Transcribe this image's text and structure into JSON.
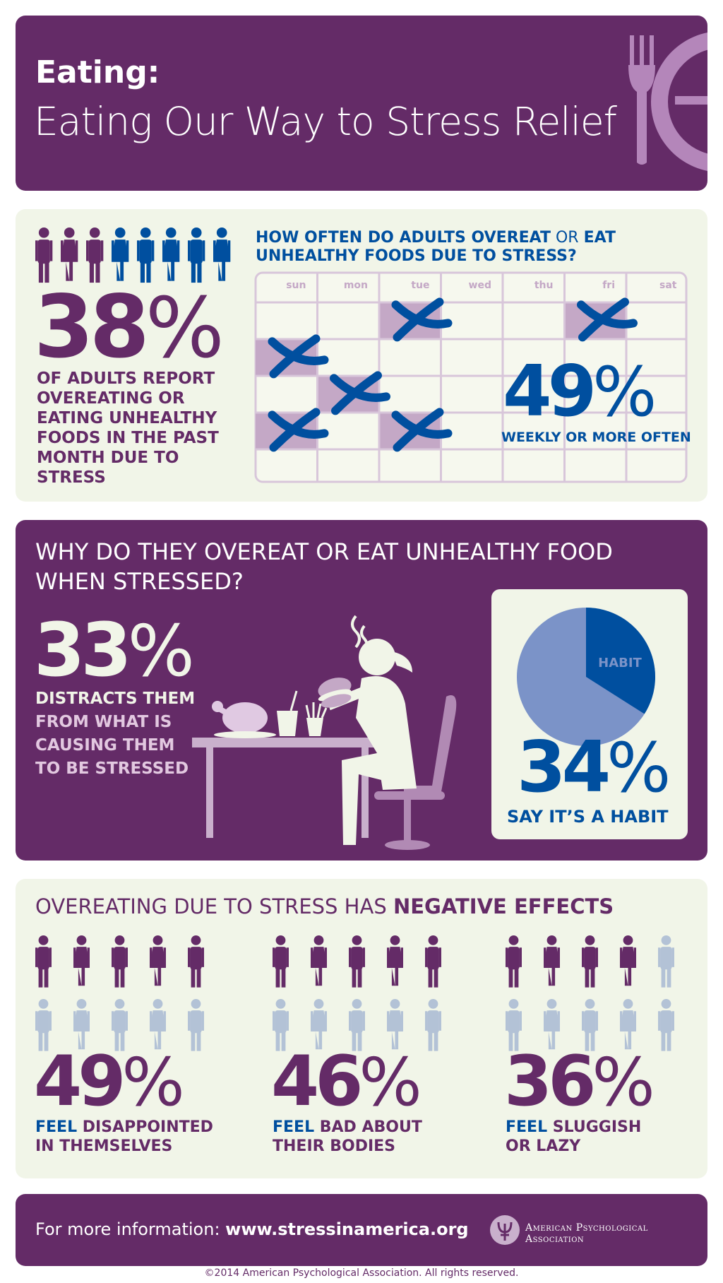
{
  "colors": {
    "purple": "#642b67",
    "light_purple": "#c4a8c6",
    "cream": "#f1f5e8",
    "blue": "#004f9f",
    "light_blue": "#7b93c8",
    "grey_blue": "#b3c2d6"
  },
  "header": {
    "title": "Eating:",
    "subtitle": "Eating Our Way to Stress Relief",
    "icon": "plate-fork-icon"
  },
  "section1": {
    "stat_number": "38",
    "stat_sign": "%",
    "desc_1": "OF ADULTS REPORT ",
    "desc_2": "OVEREATING",
    "desc_3": " OR ",
    "desc_4": "EATING UNHEALTHY FOODS",
    "desc_5": " IN THE PAST MONTH ",
    "desc_6": "DUE TO STRESS",
    "question_1": "HOW OFTEN DO ADULTS OVEREAT",
    "question_2": " OR ",
    "question_3": "EAT UNHEALTHY FOODS DUE TO STRESS?",
    "days": [
      "sun",
      "mon",
      "tue",
      "wed",
      "thu",
      "fri",
      "sat"
    ],
    "calendar_number": "49",
    "calendar_sign": "%",
    "calendar_label": "WEEKLY OR MORE OFTEN",
    "people_total": 8,
    "people_highlighted": 3
  },
  "section2": {
    "question": "WHY DO THEY OVEREAT OR EAT UNHEALTHY FOOD WHEN STRESSED?",
    "stat_number": "33",
    "stat_sign": "%",
    "desc_1": "DISTRACTS THEM",
    "desc_2": "FROM WHAT IS CAUSING THEM TO BE STRESSED",
    "pie_label": "HABIT",
    "pie_value": 34,
    "habit_number": "34",
    "habit_sign": "%",
    "habit_label": "SAY IT’S A HABIT"
  },
  "section3": {
    "title_1": "OVEREATING DUE TO STRESS HAS ",
    "title_2": "NEGATIVE EFFECTS",
    "groups": [
      {
        "number": "49",
        "sign": "%",
        "feel": "FEEL ",
        "line1": "DISAPPOINTED",
        "line2": "IN THEMSELVES",
        "highlighted": 5
      },
      {
        "number": "46",
        "sign": "%",
        "feel": "FEEL ",
        "line1": "BAD ABOUT",
        "line2": "THEIR BODIES",
        "highlighted": 5
      },
      {
        "number": "36",
        "sign": "%",
        "feel": "FEEL ",
        "line1": "SLUGGISH",
        "line2": "OR LAZY",
        "highlighted": 4
      }
    ]
  },
  "footer": {
    "prefix": "For more information: ",
    "url": "www.stressinamerica.org",
    "org": "American Psychological Association",
    "copyright": "©2014 American Psychological Association. All rights reserved."
  }
}
